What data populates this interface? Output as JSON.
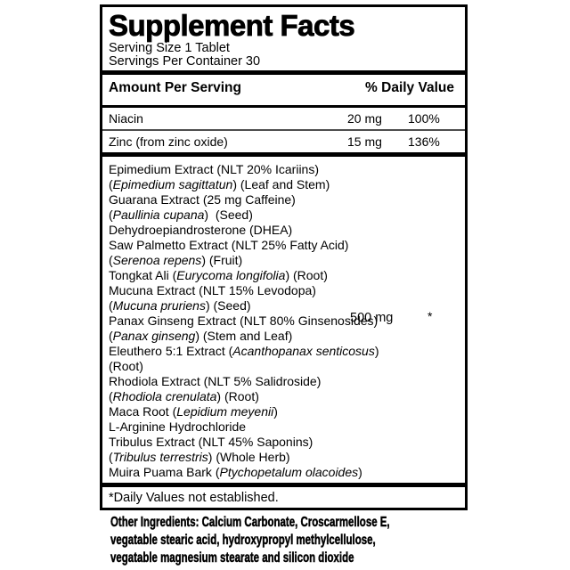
{
  "panel": {
    "title": "Supplement Facts",
    "serving_size": "Serving Size 1 Tablet",
    "servings_per_container": "Servings Per Container 30",
    "columns": {
      "amount": "Amount Per Serving",
      "daily_value": "% Daily Value"
    },
    "nutrients": [
      {
        "name": "Niacin",
        "amount": "20 mg",
        "daily_value": "100%"
      },
      {
        "name": "Zinc (from zinc oxide)",
        "amount": "15 mg",
        "daily_value": "136%"
      }
    ],
    "blend": {
      "amount": "500 mg",
      "daily_value": "*",
      "amount_row_index": 10,
      "lines": [
        [
          {
            "t": "Epimedium Extract (NLT 20% Icariins)"
          }
        ],
        [
          {
            "t": "("
          },
          {
            "t": "Epimedium sagittatun",
            "i": true
          },
          {
            "t": ") (Leaf and Stem)"
          }
        ],
        [
          {
            "t": "Guarana Extract (25 mg Caffeine)"
          }
        ],
        [
          {
            "t": "("
          },
          {
            "t": "Paullinia cupana",
            "i": true
          },
          {
            "t": ")  (Seed)"
          }
        ],
        [
          {
            "t": "Dehydroepiandrosterone (DHEA)"
          }
        ],
        [
          {
            "t": "Saw Palmetto Extract (NLT 25% Fatty Acid)"
          }
        ],
        [
          {
            "t": "("
          },
          {
            "t": "Serenoa repens",
            "i": true
          },
          {
            "t": ") (Fruit)"
          }
        ],
        [
          {
            "t": "Tongkat Ali ("
          },
          {
            "t": "Eurycoma longifolia",
            "i": true
          },
          {
            "t": ") (Root)"
          }
        ],
        [
          {
            "t": "Mucuna Extract (NLT 15% Levodopa)"
          }
        ],
        [
          {
            "t": "("
          },
          {
            "t": "Mucuna pruriens",
            "i": true
          },
          {
            "t": ") (Seed)"
          }
        ],
        [
          {
            "t": "Panax Ginseng Extract (NLT 80% Ginsenosides)"
          }
        ],
        [
          {
            "t": "("
          },
          {
            "t": "Panax ginseng",
            "i": true
          },
          {
            "t": ") (Stem and Leaf)"
          }
        ],
        [
          {
            "t": "Eleuthero 5:1 Extract ("
          },
          {
            "t": "Acanthopanax senticosus",
            "i": true
          },
          {
            "t": ")"
          }
        ],
        [
          {
            "t": "(Root)"
          }
        ],
        [
          {
            "t": "Rhodiola Extract (NLT 5% Salidroside)"
          }
        ],
        [
          {
            "t": "("
          },
          {
            "t": "Rhodiola crenulata",
            "i": true
          },
          {
            "t": ") (Root)"
          }
        ],
        [
          {
            "t": "Maca Root ("
          },
          {
            "t": "Lepidium meyenii",
            "i": true
          },
          {
            "t": ")"
          }
        ],
        [
          {
            "t": "L-Arginine Hydrochloride"
          }
        ],
        [
          {
            "t": "Tribulus Extract (NLT 45% Saponins)"
          }
        ],
        [
          {
            "t": "("
          },
          {
            "t": "Tribulus terrestris",
            "i": true
          },
          {
            "t": ") (Whole Herb)"
          }
        ],
        [
          {
            "t": "Muira Puama Bark ("
          },
          {
            "t": "Ptychopetalum olacoides",
            "i": true
          },
          {
            "t": ")"
          }
        ]
      ]
    },
    "footnote": "*Daily Values not established.",
    "other_ingredients_lines": [
      "Other Ingredients: Calcium Carbonate, Croscarmellose E,",
      "vegatable stearic acid, hydroxypropyl methylcellulose,",
      "vegatable magnesium stearate and silicon dioxide"
    ],
    "colors": {
      "text": "#000000",
      "background": "#ffffff",
      "thin_rule": "#4d4d4d"
    }
  }
}
